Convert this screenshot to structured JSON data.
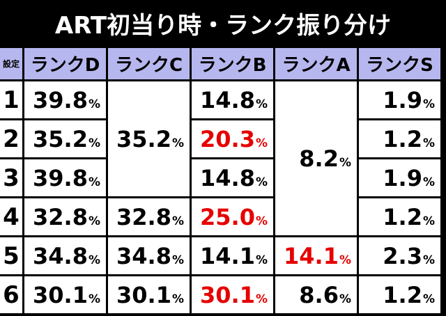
{
  "title": "ART初当り時・ランク振り分け",
  "header": {
    "setting": "設定",
    "ranks": [
      "ランクD",
      "ランクC",
      "ランクB",
      "ランクA",
      "ランクS"
    ]
  },
  "percent_sign": "%",
  "rows": [
    {
      "setting": "1",
      "D": "39.8",
      "B": "14.8",
      "S": "1.9"
    },
    {
      "setting": "2",
      "D": "35.2",
      "B": "20.3",
      "S": "1.2"
    },
    {
      "setting": "3",
      "D": "39.8",
      "B": "14.8",
      "S": "1.9"
    },
    {
      "setting": "4",
      "D": "32.8",
      "C": "32.8",
      "B": "25.0",
      "S": "1.2"
    },
    {
      "setting": "5",
      "D": "34.8",
      "C": "34.8",
      "B": "14.1",
      "A": "14.1",
      "S": "2.3"
    },
    {
      "setting": "6",
      "D": "30.1",
      "C": "30.1",
      "B": "30.1",
      "A": "8.6",
      "S": "1.2"
    }
  ],
  "merged": {
    "C_settings_1_3": "35.2",
    "A_settings_1_4": "8.2"
  },
  "highlight_color": "#e60000",
  "header_color": "#b7b7ef"
}
